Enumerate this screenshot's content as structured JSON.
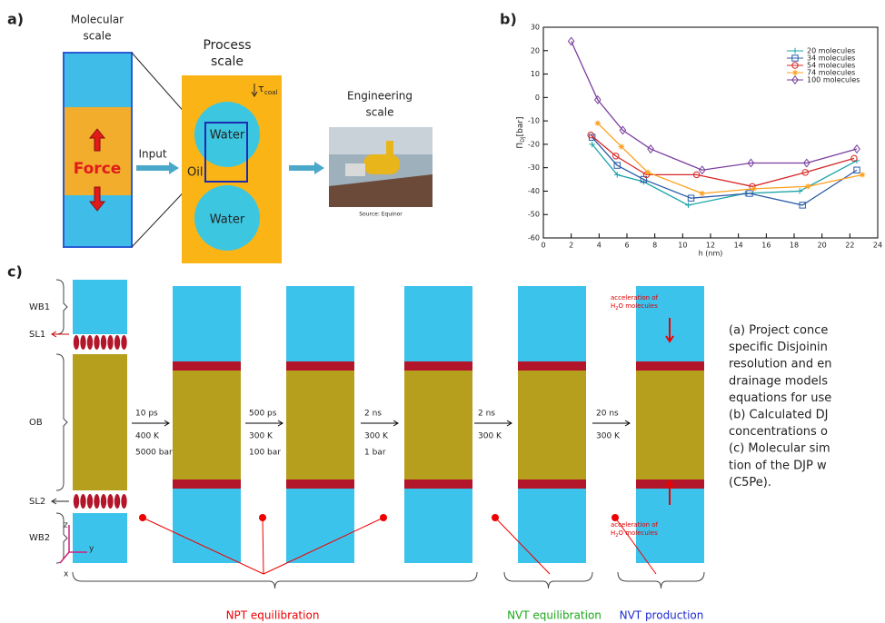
{
  "panel_a": {
    "label": "a)",
    "molecular_scale": [
      "Molecular",
      "scale"
    ],
    "force": "Force",
    "input": "Input",
    "process_scale": [
      "Process",
      "scale"
    ],
    "tau": "τ",
    "tau_sub": "coal",
    "water_top": "Water",
    "oil": "Oil",
    "water_bottom": "Water",
    "engineering_scale": [
      "Engineering",
      "scale"
    ],
    "source": "Source: Equinor"
  },
  "panel_b_label": "b)",
  "chart_data": {
    "type": "line",
    "y_label": "Π",
    "y_label_sub": "DJ",
    "y_label_unit": "[bar]",
    "x_label": "h (nm)",
    "xlim": [
      0,
      24
    ],
    "xticks": [
      0,
      2,
      4,
      6,
      8,
      10,
      12,
      14,
      16,
      18,
      20,
      22,
      24
    ],
    "ylim": [
      -60,
      30
    ],
    "yticks": [
      -60,
      -50,
      -40,
      -30,
      -20,
      -10,
      0,
      10,
      20,
      30
    ],
    "legend": "upper right",
    "series": [
      {
        "name": "20 molecules",
        "color": "#1aa3a8",
        "marker": "plus",
        "x": [
          3.5,
          5.3,
          7.2,
          10.4,
          14.5,
          18.4,
          22.5
        ],
        "values": [
          -20,
          -33,
          -36,
          -46,
          -41,
          -40,
          -27
        ]
      },
      {
        "name": "34 molecules",
        "color": "#2b5ba6",
        "marker": "square",
        "x": [
          3.5,
          5.3,
          7.2,
          10.6,
          14.8,
          18.6,
          22.5
        ],
        "values": [
          -17,
          -29,
          -35,
          -43,
          -41,
          -46,
          -31
        ]
      },
      {
        "name": "54 molecules",
        "color": "#d62728",
        "marker": "circle",
        "x": [
          3.4,
          5.2,
          7.4,
          11,
          15,
          18.8,
          22.3
        ],
        "values": [
          -16,
          -25,
          -33,
          -33,
          -38,
          -32,
          -26
        ]
      },
      {
        "name": "74 molecules",
        "color": "#ff9f1c",
        "marker": "star",
        "x": [
          3.9,
          5.6,
          7.5,
          11.4,
          15.1,
          19,
          22.9
        ],
        "values": [
          -11,
          -21,
          -32,
          -41,
          -39,
          -38,
          -33
        ]
      },
      {
        "name": "100 molecules",
        "color": "#7b3f9e",
        "marker": "diamond",
        "x": [
          2,
          3.9,
          5.7,
          7.7,
          11.4,
          14.9,
          18.9,
          22.5
        ],
        "values": [
          24,
          -1,
          -14,
          -22,
          -31,
          -28,
          -28,
          -22
        ]
      }
    ]
  },
  "panel_c": {
    "label": "c)",
    "layers": [
      "WB1",
      "SL1",
      "OB",
      "SL2",
      "WB2"
    ],
    "steps": [
      [
        "10 ps",
        "400 K",
        "5000 bar"
      ],
      [
        "500 ps",
        "300 K",
        "100 bar"
      ],
      [
        "2 ns",
        "300 K",
        "1 bar"
      ],
      [
        "2 ns",
        "300 K"
      ],
      [
        "20 ns",
        "300 K"
      ]
    ],
    "acceleration": [
      "acceleration of",
      "H",
      "2",
      "O molecules"
    ],
    "axes": [
      "z",
      "y",
      "x"
    ],
    "phases": [
      "NPT equilibration",
      "NVT equilibration",
      "NVT production"
    ]
  },
  "caption": [
    "(a) Project conce",
    "specific Disjoinin",
    "resolution and en",
    "drainage models",
    "equations for use",
    "(b) Calculated DJ",
    "concentrations o",
    "(c) Molecular sim",
    "tion of the DJP w",
    "(C5Pe)."
  ]
}
